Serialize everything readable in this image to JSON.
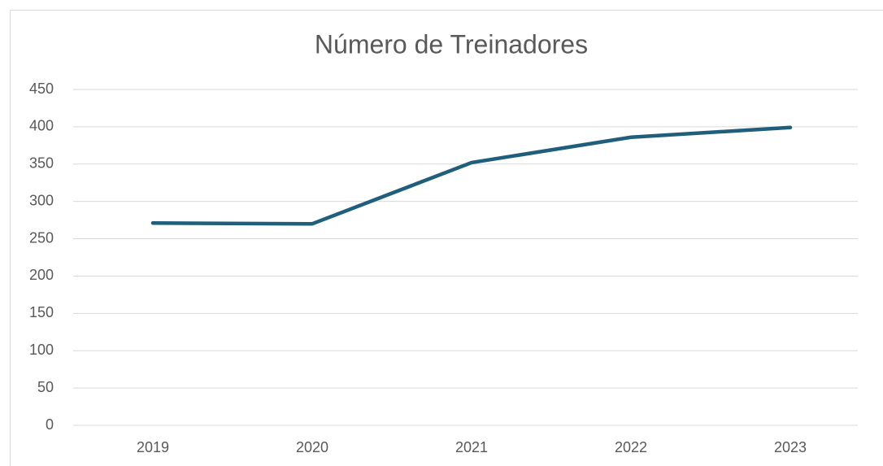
{
  "chart_data": {
    "type": "line",
    "title": "Número de Treinadores",
    "categories": [
      "2019",
      "2020",
      "2021",
      "2022",
      "2023"
    ],
    "series": [
      {
        "name": "Número de Treinadores",
        "color": "#1f5f7b",
        "values": [
          271,
          270,
          352,
          386,
          399
        ]
      }
    ],
    "ylim": [
      0,
      450
    ],
    "yticks": [
      0,
      50,
      100,
      150,
      200,
      250,
      300,
      350,
      400,
      450
    ],
    "grid": true
  }
}
